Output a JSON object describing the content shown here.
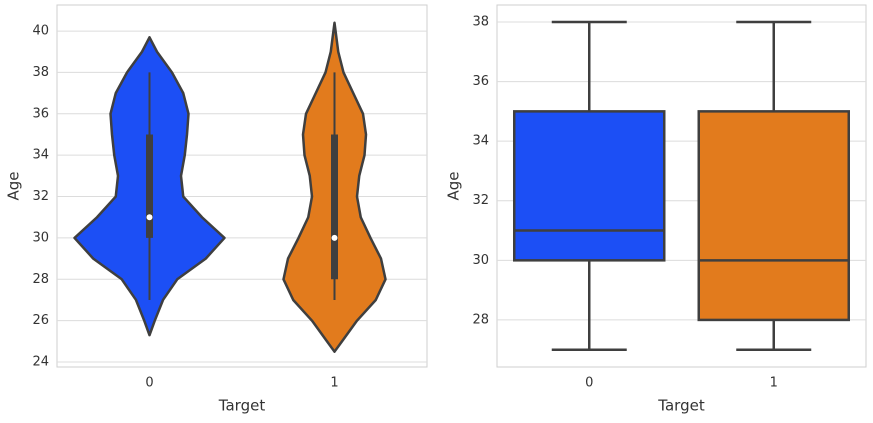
{
  "chart_data": [
    {
      "type": "violin",
      "xlabel": "Target",
      "ylabel": "Age",
      "categories": [
        "0",
        "1"
      ],
      "ylim": [
        23.76,
        41.26
      ],
      "yticks": [
        24,
        26,
        28,
        30,
        32,
        34,
        36,
        38,
        40
      ],
      "grid": true,
      "groups": [
        {
          "color": "#1c4ff5",
          "whisker_low": 27,
          "q1": 30,
          "median": 31,
          "q3": 35,
          "whisker_high": 38,
          "density": {
            "y": [
              25.3,
              26,
              27,
              28,
              29,
              30,
              31,
              32,
              33,
              34,
              35,
              36,
              37,
              38,
              39,
              39.7
            ],
            "width": [
              0,
              0.07,
              0.18,
              0.37,
              0.75,
              1.0,
              0.7,
              0.45,
              0.42,
              0.47,
              0.5,
              0.52,
              0.45,
              0.3,
              0.1,
              0
            ]
          }
        },
        {
          "color": "#e27b1d",
          "whisker_low": 27,
          "q1": 28,
          "median": 30,
          "q3": 35,
          "whisker_high": 38,
          "density": {
            "y": [
              24.5,
              25,
              26,
              27,
              28,
              29,
              30,
              31,
              32,
              33,
              34,
              35,
              36,
              37,
              38,
              39,
              40.4
            ],
            "width": [
              0,
              0.1,
              0.3,
              0.55,
              0.68,
              0.62,
              0.48,
              0.35,
              0.3,
              0.33,
              0.4,
              0.42,
              0.38,
              0.25,
              0.12,
              0.05,
              0
            ]
          }
        }
      ]
    },
    {
      "type": "box",
      "xlabel": "Target",
      "ylabel": "Age",
      "categories": [
        "0",
        "1"
      ],
      "ylim": [
        26.42,
        38.57
      ],
      "yticks": [
        28,
        30,
        32,
        34,
        36,
        38
      ],
      "grid": true,
      "groups": [
        {
          "color": "#1c4ff5",
          "whisker_low": 27,
          "q1": 30,
          "median": 31,
          "q3": 35,
          "whisker_high": 38
        },
        {
          "color": "#e27b1d",
          "whisker_low": 27,
          "q1": 28,
          "median": 30,
          "q3": 35,
          "whisker_high": 38
        }
      ]
    }
  ]
}
